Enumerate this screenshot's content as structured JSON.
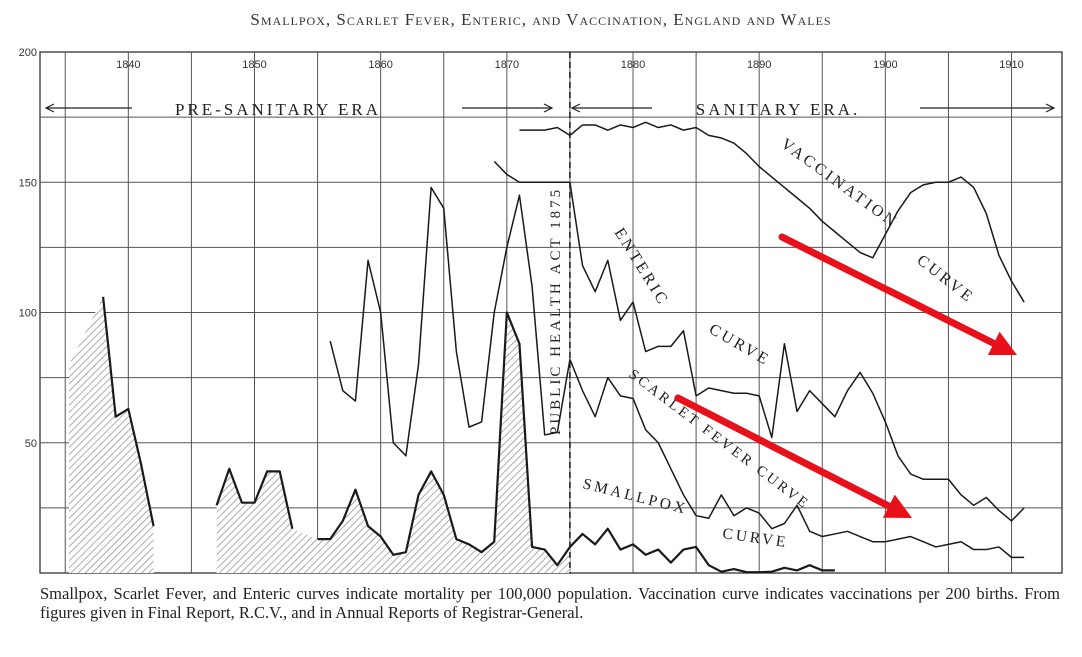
{
  "chart_data": {
    "type": "line",
    "title": "Smallpox, Scarlet Fever, Enteric, and Vaccination, England and Wales",
    "caption": "Smallpox, Scarlet Fever, and Enteric curves indicate mortality per 100,000 population. Vaccination curve indicates vaccinations per 200 births. From figures given in Final Report, R.C.V., and in Annual Reports of Registrar-General.",
    "xlabel": "",
    "ylabel": "",
    "xlim": [
      1833,
      1914
    ],
    "ylim": [
      0,
      200
    ],
    "x_ticks": [
      1840,
      1850,
      1860,
      1870,
      1880,
      1890,
      1900,
      1910
    ],
    "x_tick_labels": [
      "1840",
      "1850",
      "1860",
      "1870",
      "1880",
      "1890",
      "1900",
      "1910"
    ],
    "y_ticks": [
      0,
      50,
      100,
      150,
      200
    ],
    "y_tick_labels": [
      "",
      "50",
      "100",
      "150",
      "200"
    ],
    "grid": true,
    "era_labels": {
      "pre": "Pre-Sanitary Era",
      "post": "Sanitary Era."
    },
    "act": {
      "year": 1875,
      "label": "Public Health Act 1875"
    },
    "series": [
      {
        "name": "Smallpox Curve",
        "label": "Smallpox",
        "label2": "Curve",
        "x": [
          1838,
          1839,
          1840,
          1841,
          1842,
          1847,
          1848,
          1849,
          1850,
          1851,
          1852,
          1853,
          1855,
          1856,
          1857,
          1858,
          1859,
          1860,
          1861,
          1862,
          1863,
          1864,
          1865,
          1866,
          1867,
          1868,
          1869,
          1870,
          1871,
          1872,
          1873,
          1874,
          1875,
          1876,
          1877,
          1878,
          1879,
          1880,
          1881,
          1882,
          1883,
          1884,
          1885,
          1886,
          1887,
          1888,
          1889,
          1890,
          1891,
          1892,
          1893,
          1894,
          1895,
          1896
        ],
        "y": [
          106,
          60,
          63,
          42,
          18,
          26,
          40,
          27,
          27,
          39,
          39,
          17,
          13,
          13,
          20,
          32,
          18,
          14,
          7,
          8,
          30,
          39,
          30,
          13,
          11,
          8,
          12,
          100,
          88,
          10,
          9,
          3,
          10,
          15,
          11,
          17,
          9,
          11,
          7,
          9,
          4,
          9,
          10,
          3,
          0.5,
          1.5,
          0.3,
          0.3,
          0.5,
          2,
          1,
          3,
          1,
          1
        ]
      },
      {
        "name": "Scarlet Fever Curve",
        "label": "Scarlet Fever Curve",
        "x": [
          1875,
          1876,
          1877,
          1878,
          1879,
          1880,
          1881,
          1882,
          1883,
          1884,
          1885,
          1886,
          1887,
          1888,
          1889,
          1890,
          1891,
          1892,
          1893,
          1894,
          1895,
          1896,
          1897,
          1898,
          1899,
          1900,
          1901,
          1902,
          1903,
          1904,
          1905,
          1906,
          1907,
          1908,
          1909,
          1910,
          1911
        ],
        "y": [
          82,
          70,
          60,
          75,
          68,
          67,
          55,
          50,
          40,
          30,
          22,
          21,
          30,
          22,
          25,
          23,
          17,
          19,
          26,
          16,
          14,
          15,
          16,
          14,
          12,
          12,
          13,
          14,
          12,
          10,
          11,
          12,
          9,
          9,
          10,
          6,
          6
        ]
      },
      {
        "name": "Enteric Curve",
        "label": "Enteric",
        "label2": "Curve",
        "x": [
          1869,
          1870,
          1871,
          1872,
          1873,
          1874,
          1875,
          1876,
          1877,
          1878,
          1879,
          1880,
          1881,
          1882,
          1883,
          1884,
          1885,
          1886,
          1887,
          1888,
          1889,
          1890,
          1891,
          1892,
          1893,
          1894,
          1895,
          1896,
          1897,
          1898,
          1899,
          1900,
          1901,
          1902,
          1903,
          1904,
          1905,
          1906,
          1907,
          1908,
          1909,
          1910,
          1911
        ],
        "y": [
          158,
          153,
          150,
          150,
          150,
          150,
          150,
          118,
          108,
          120,
          97,
          104,
          85,
          87,
          87,
          93,
          68,
          71,
          70,
          69,
          69,
          68,
          52,
          88,
          62,
          70,
          65,
          60,
          70,
          77,
          69,
          58,
          45,
          38,
          36,
          36,
          36,
          30,
          26,
          29,
          24,
          20,
          25
        ]
      },
      {
        "name": "Vaccination Curve",
        "label": "Vaccination",
        "label2": "Curve",
        "x": [
          1871,
          1872,
          1873,
          1874,
          1875,
          1876,
          1877,
          1878,
          1879,
          1880,
          1881,
          1882,
          1883,
          1884,
          1885,
          1886,
          1887,
          1888,
          1889,
          1890,
          1891,
          1892,
          1893,
          1894,
          1895,
          1896,
          1897,
          1898,
          1899,
          1900,
          1901,
          1902,
          1903,
          1904,
          1905,
          1906,
          1907,
          1908,
          1909,
          1910,
          1911
        ],
        "y": [
          170,
          170,
          170,
          171,
          168,
          172,
          172,
          170,
          172,
          171,
          173,
          171,
          172,
          170,
          171,
          168,
          167,
          165,
          161,
          156,
          152,
          148,
          144,
          140,
          135,
          131,
          127,
          123,
          121,
          130,
          139,
          146,
          149,
          150,
          150,
          152,
          148,
          138,
          122,
          112,
          104
        ]
      }
    ],
    "trend_arrows_color": "#e8101a"
  }
}
